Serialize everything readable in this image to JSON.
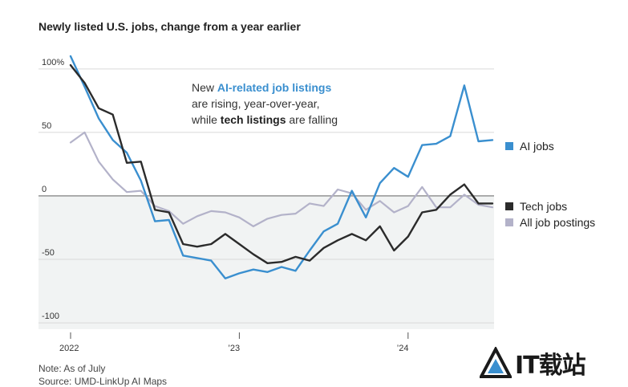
{
  "title": "Newly listed U.S. jobs, change from a year earlier",
  "annotation": {
    "line1_prefix": "New ",
    "line1_highlight": "AI-related job listings",
    "line2": "are rising, year-over-year,",
    "line3_prefix": "while ",
    "line3_highlight": "tech listings",
    "line3_suffix": " are falling"
  },
  "footer": {
    "note": "Note: As of July",
    "source": "Source: UMD-LinkUp AI Maps"
  },
  "logo": {
    "text": "IT载站",
    "icon": "triangle-logo-icon"
  },
  "colors": {
    "ai": "#3a8fcf",
    "tech": "#2b2b2b",
    "all": "#b3b2c9",
    "shade": "#f1f3f3"
  },
  "chart_data": {
    "type": "line",
    "title": "Newly listed U.S. jobs, change from a year earlier",
    "x": [
      "2022-01",
      "2022-02",
      "2022-03",
      "2022-04",
      "2022-05",
      "2022-06",
      "2022-07",
      "2022-08",
      "2022-09",
      "2022-10",
      "2022-11",
      "2022-12",
      "2023-01",
      "2023-02",
      "2023-03",
      "2023-04",
      "2023-05",
      "2023-06",
      "2023-07",
      "2023-08",
      "2023-09",
      "2023-10",
      "2023-11",
      "2023-12",
      "2024-01",
      "2024-02",
      "2024-03",
      "2024-04",
      "2024-05",
      "2024-06",
      "2024-07"
    ],
    "x_tick_labels": [
      {
        "label": "2022",
        "x": "2022-01"
      },
      {
        "label": "’23",
        "x": "2023-01"
      },
      {
        "label": "’24",
        "x": "2024-01"
      }
    ],
    "yticks": [
      {
        "value": 100,
        "label": "100%"
      },
      {
        "value": 50,
        "label": "50"
      },
      {
        "value": 0,
        "label": "0"
      },
      {
        "value": -50,
        "label": "-50"
      },
      {
        "value": -100,
        "label": "-100"
      }
    ],
    "ylim": [
      -105,
      110
    ],
    "grid": true,
    "series": [
      {
        "name": "AI jobs",
        "key": "ai",
        "values": [
          110,
          86,
          61,
          44,
          34,
          12,
          -20,
          -19,
          -47,
          -49,
          -51,
          -65,
          -61,
          -58,
          -60,
          -56,
          -59,
          -43,
          -28,
          -22,
          4,
          -17,
          10,
          22,
          15,
          40,
          41,
          47,
          87,
          43,
          44
        ]
      },
      {
        "name": "Tech jobs",
        "key": "tech",
        "values": [
          103,
          89,
          69,
          64,
          26,
          27,
          -11,
          -13,
          -38,
          -40,
          -38,
          -30,
          -38,
          -46,
          -53,
          -52,
          -48,
          -51,
          -41,
          -35,
          -30,
          -35,
          -24,
          -43,
          -32,
          -13,
          -11,
          1,
          9,
          -6,
          -6
        ]
      },
      {
        "name": "All job postings",
        "key": "all",
        "values": [
          42,
          50,
          27,
          13,
          3,
          4,
          -8,
          -12,
          -22,
          -16,
          -12,
          -13,
          -17,
          -24,
          -18,
          -15,
          -14,
          -6,
          -8,
          5,
          2,
          -11,
          -4,
          -13,
          -8,
          7,
          -9,
          -9,
          1,
          -7,
          -9
        ]
      }
    ]
  }
}
